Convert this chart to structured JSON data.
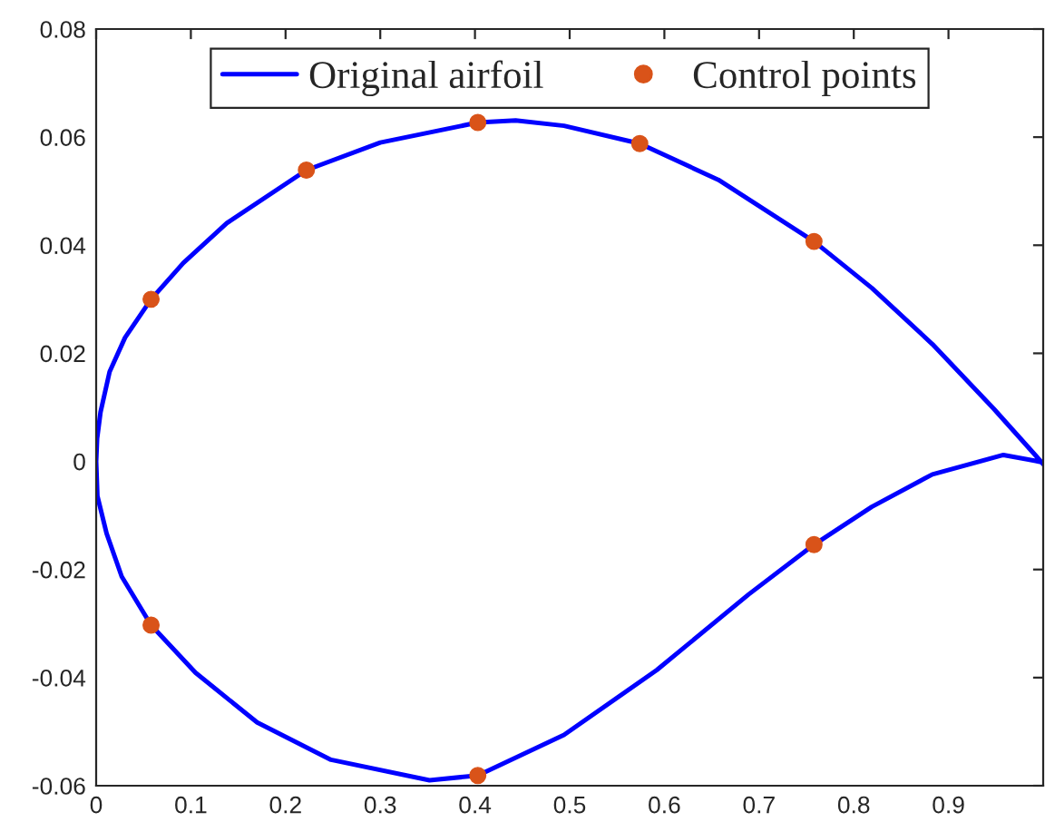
{
  "chart_data": {
    "type": "line",
    "series": [
      {
        "name": "Original airfoil",
        "color": "#0000ff",
        "line_style": "solid",
        "x": [
          1.0,
          0.992,
          0.948,
          0.883,
          0.819,
          0.758,
          0.657,
          0.574,
          0.494,
          0.443,
          0.403,
          0.3,
          0.222,
          0.138,
          0.092,
          0.058,
          0.0305,
          0.0142,
          0.0046,
          0.001,
          0,
          0.0013,
          0.011,
          0.027,
          0.058,
          0.105,
          0.17,
          0.248,
          0.352,
          0.403,
          0.494,
          0.592,
          0.689,
          0.758,
          0.819,
          0.883,
          0.958,
          0.992,
          1.0
        ],
        "values": [
          -0.0005,
          0.0011,
          0.0097,
          0.0217,
          0.0321,
          0.0407,
          0.0521,
          0.0588,
          0.0621,
          0.0631,
          0.0627,
          0.059,
          0.0539,
          0.0441,
          0.0367,
          0.03,
          0.0229,
          0.0166,
          0.0091,
          0.0042,
          0,
          -0.0064,
          -0.0133,
          -0.0213,
          -0.0303,
          -0.0391,
          -0.0483,
          -0.0552,
          -0.059,
          -0.0581,
          -0.0506,
          -0.0386,
          -0.0246,
          -0.0154,
          -0.0084,
          -0.0024,
          0.0012,
          0.0001,
          -0.0002
        ]
      },
      {
        "name": "Control points",
        "type": "scatter",
        "color": "#d95319",
        "marker": "circle",
        "x": [
          0.058,
          0.222,
          0.403,
          0.574,
          0.758,
          0.058,
          0.403,
          0.758
        ],
        "values": [
          0.03,
          0.0539,
          0.0627,
          0.0588,
          0.0407,
          -0.0303,
          -0.0581,
          -0.0154
        ]
      }
    ],
    "xlim": [
      0,
      1
    ],
    "ylim": [
      -0.06,
      0.08
    ],
    "xticks": [
      0,
      0.1,
      0.2,
      0.3,
      0.4,
      0.5,
      0.6,
      0.7,
      0.8,
      0.9
    ],
    "yticks": [
      -0.06,
      -0.04,
      -0.02,
      0,
      0.02,
      0.04,
      0.06,
      0.08
    ],
    "legend": "top"
  }
}
